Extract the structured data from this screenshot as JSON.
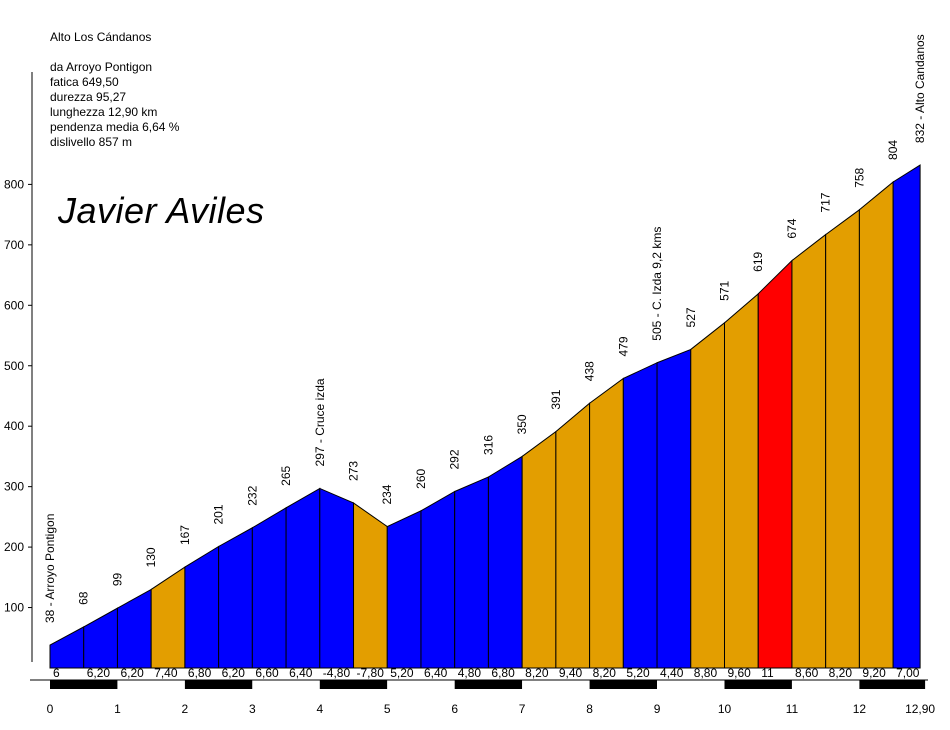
{
  "chart_data": {
    "type": "area",
    "title": "Alto Los Cándanos",
    "subtitle_lines": [
      "da Arroyo Pontigon",
      "fatica 649,50",
      "durezza 95,27",
      "lunghezza 12,90 km",
      "pendenza media 6,64 %",
      "dislivello 857 m"
    ],
    "author": "Javier Aviles",
    "xlabel": "",
    "ylabel": "",
    "xlim": [
      0,
      12.9
    ],
    "ylim": [
      0,
      900
    ],
    "yticks": [
      100,
      200,
      300,
      400,
      500,
      600,
      700,
      800
    ],
    "xticks": [
      {
        "value": 0,
        "label": "0"
      },
      {
        "value": 1,
        "label": "1"
      },
      {
        "value": 2,
        "label": "2"
      },
      {
        "value": 3,
        "label": "3"
      },
      {
        "value": 4,
        "label": "4"
      },
      {
        "value": 5,
        "label": "5"
      },
      {
        "value": 6,
        "label": "6"
      },
      {
        "value": 7,
        "label": "7"
      },
      {
        "value": 8,
        "label": "8"
      },
      {
        "value": 9,
        "label": "9"
      },
      {
        "value": 10,
        "label": "10"
      },
      {
        "value": 11,
        "label": "11"
      },
      {
        "value": 12,
        "label": "12"
      },
      {
        "value": 12.9,
        "label": "12,90"
      }
    ],
    "grid": false,
    "x_km": [
      0,
      0.5,
      1,
      1.5,
      2,
      2.5,
      3,
      3.5,
      4,
      4.5,
      5,
      5.5,
      6,
      6.5,
      7,
      7.5,
      8,
      8.5,
      9,
      9.5,
      10,
      10.5,
      11,
      11.5,
      12,
      12.5,
      12.9
    ],
    "elevation_m": [
      38,
      68,
      99,
      130,
      167,
      201,
      232,
      265,
      297,
      273,
      234,
      260,
      292,
      316,
      350,
      391,
      438,
      479,
      505,
      527,
      571,
      619,
      674,
      717,
      758,
      804,
      832
    ],
    "point_labels": [
      "38 - Arroyo Pontigon",
      "68",
      "99",
      "130",
      "167",
      "201",
      "232",
      "265",
      "297 - Cruce izda",
      "273",
      "234",
      "260",
      "292",
      "316",
      "350",
      "391",
      "438",
      "479",
      "505 - C. Izda 9,2 kms",
      "527",
      "571",
      "619",
      "674",
      "717",
      "758",
      "804",
      "832 - Alto Candanos"
    ],
    "segments": [
      {
        "gradient": "6",
        "color": "#0000ff"
      },
      {
        "gradient": "6,20",
        "color": "#0000ff"
      },
      {
        "gradient": "6,20",
        "color": "#0000ff"
      },
      {
        "gradient": "7,40",
        "color": "#e39e00"
      },
      {
        "gradient": "6,80",
        "color": "#0000ff"
      },
      {
        "gradient": "6,20",
        "color": "#0000ff"
      },
      {
        "gradient": "6,60",
        "color": "#0000ff"
      },
      {
        "gradient": "6,40",
        "color": "#0000ff"
      },
      {
        "gradient": "-4,80",
        "color": "#0000ff"
      },
      {
        "gradient": "-7,80",
        "color": "#e39e00"
      },
      {
        "gradient": "5,20",
        "color": "#0000ff"
      },
      {
        "gradient": "6,40",
        "color": "#0000ff"
      },
      {
        "gradient": "4,80",
        "color": "#0000ff"
      },
      {
        "gradient": "6,80",
        "color": "#0000ff"
      },
      {
        "gradient": "8,20",
        "color": "#e39e00"
      },
      {
        "gradient": "9,40",
        "color": "#e39e00"
      },
      {
        "gradient": "8,20",
        "color": "#e39e00"
      },
      {
        "gradient": "5,20",
        "color": "#0000ff"
      },
      {
        "gradient": "4,40",
        "color": "#0000ff"
      },
      {
        "gradient": "8,80",
        "color": "#e39e00"
      },
      {
        "gradient": "9,60",
        "color": "#e39e00"
      },
      {
        "gradient": "11",
        "color": "#ff0000"
      },
      {
        "gradient": "8,60",
        "color": "#e39e00"
      },
      {
        "gradient": "8,20",
        "color": "#e39e00"
      },
      {
        "gradient": "9,20",
        "color": "#e39e00"
      },
      {
        "gradient": "7,00",
        "color": "#0000ff"
      }
    ],
    "colors": {
      "low": "#0000ff",
      "medium": "#e39e00",
      "high": "#ff0000",
      "outline": "#000000"
    }
  }
}
